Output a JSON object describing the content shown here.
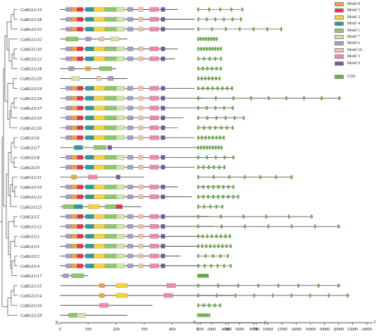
{
  "genes": [
    "CaBGLU13",
    "CaBGLU28",
    "CaBGLU31",
    "CaBGLU32",
    "CaBGLU30",
    "CaBGLU21",
    "CaBGLU18",
    "CaBGLU20",
    "CaBGLU19",
    "CaBGLU24",
    "CaBGLU27",
    "CaBGLU25",
    "CaBGLU26",
    "CaBGLU6",
    "CaBGLU7",
    "CaBGLU8",
    "CaBGLU9",
    "CaBGLU11",
    "CaBGLU10",
    "CaBGLU22",
    "CaBGLU23",
    "CaBGLU5",
    "CaBGLU12",
    "CaBGLU2",
    "CaBGLU3",
    "CaBGLU1",
    "CaBGLU4",
    "CaBGLU17",
    "CaBGLU15",
    "CaBGLU14",
    "CaBGLU16",
    "CaBGLU29"
  ],
  "legend": [
    {
      "label": "Motif 8",
      "color": "#f2a23a"
    },
    {
      "label": "Motif 5",
      "color": "#e8334a"
    },
    {
      "label": "Motif 2",
      "color": "#f7d338"
    },
    {
      "label": "Motif 4",
      "color": "#2a9c9c"
    },
    {
      "label": "Motif 1",
      "color": "#8cc86a"
    },
    {
      "label": "Motif 7",
      "color": "#d0e6a6"
    },
    {
      "label": "Motif 6",
      "color": "#a29ec8"
    },
    {
      "label": "Motif 10",
      "color": "#f5c2a6"
    },
    {
      "label": "Motif 3",
      "color": "#f08aa8"
    },
    {
      "label": "Motif 9",
      "color": "#6e5ca0"
    },
    {
      "label": "CDS",
      "color": "#6db446"
    }
  ],
  "protein_axis": {
    "label": "N",
    "ticks": [
      "0",
      "100",
      "200",
      "300",
      "400",
      "500",
      "600",
      "700"
    ],
    "end": "C"
  },
  "gene_axis": {
    "start": "5'",
    "ticks": [
      "0",
      "2000",
      "4000",
      "6000",
      "8000",
      "10000",
      "12000",
      "14000",
      "16000",
      "18000",
      "20000",
      "22000",
      "24000"
    ],
    "end": "3'"
  }
}
